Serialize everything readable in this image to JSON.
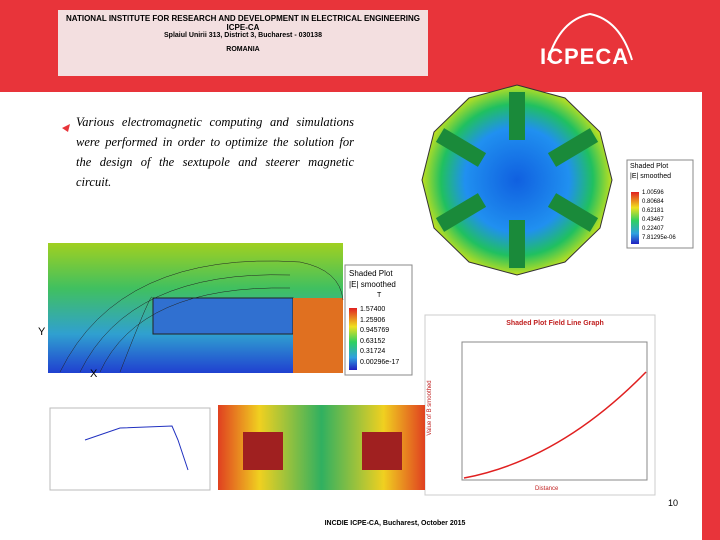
{
  "header": {
    "line1": "NATIONAL INSTITUTE FOR RESEARCH AND DEVELOPMENT IN ELECTRICAL ENGINEERING ICPE-CA",
    "line2": "Splaiul Unirii 313, District 3, Bucharest - 030138",
    "line3": "ROMANIA",
    "logo": "ICPECA"
  },
  "bullet": "Various electromagnetic computing and simulations were performed in order to optimize the solution for the design of the sextupole and steerer magnetic circuit.",
  "legend_top": {
    "title": "Shaded Plot",
    "subtitle": "|E| smoothed",
    "values": [
      "1.00596",
      "0.80684",
      "0.62181",
      "0.43467",
      "0.22407",
      "7.81295e-06"
    ]
  },
  "legend_left": {
    "title": "Shaded Plot",
    "subtitle": "|E| smoothed",
    "unit": "T",
    "values": [
      "1.57400",
      "1.25906",
      "0.945769",
      "0.63152",
      "0.31724",
      "0.00296e-17"
    ]
  },
  "axes": {
    "y": "Y",
    "x": "X"
  },
  "line_graph": {
    "title": "Shaded Plot Field Line Graph",
    "xlabel": "Distance",
    "ylabel": "Value of B smoothed"
  },
  "page_number": "10",
  "footer": "INCDIE ICPE-CA, Bucharest, October 2015"
}
